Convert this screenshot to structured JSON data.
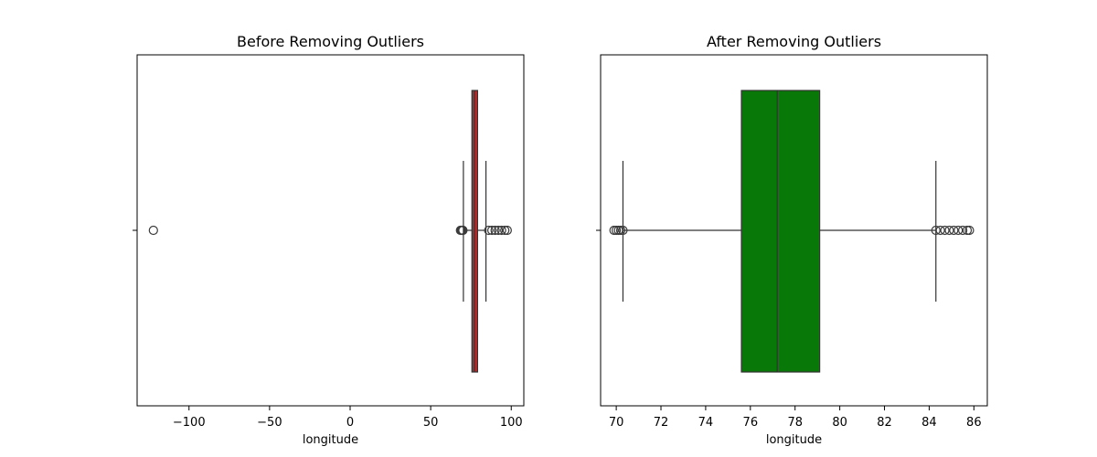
{
  "chart_data": [
    {
      "type": "box",
      "title": "Before Removing Outliers",
      "xlabel": "longitude",
      "ylabel": "",
      "xlim": [
        -132.2,
        107.8
      ],
      "xticks": [
        -100,
        -50,
        0,
        50,
        100
      ],
      "xtick_labels": [
        "−100",
        "−50",
        "0",
        "50",
        "100"
      ],
      "box": {
        "whisker_low": 70.3,
        "q1": 75.6,
        "median": 77.2,
        "q3": 79.1,
        "whisker_high": 84.3
      },
      "outliers_low": [
        -122.1,
        68.5,
        69.0,
        69.5,
        70.0
      ],
      "outliers_high": [
        86.0,
        88.0,
        90.0,
        92.0,
        94.0,
        96.0,
        97.5
      ],
      "color": "#b82b2b",
      "grid": false
    },
    {
      "type": "box",
      "title": "After Removing Outliers",
      "xlabel": "longitude",
      "ylabel": "",
      "xlim": [
        69.3,
        86.6
      ],
      "xticks": [
        70,
        72,
        74,
        76,
        78,
        80,
        82,
        84,
        86
      ],
      "xtick_labels": [
        "70",
        "72",
        "74",
        "76",
        "78",
        "80",
        "82",
        "84",
        "86"
      ],
      "box": {
        "whisker_low": 70.3,
        "q1": 75.6,
        "median": 77.2,
        "q3": 79.1,
        "whisker_high": 84.3
      },
      "outliers_low": [
        69.9,
        70.0,
        70.1,
        70.2,
        70.3
      ],
      "outliers_high": [
        84.3,
        84.5,
        84.7,
        84.9,
        85.1,
        85.3,
        85.5,
        85.7,
        85.8
      ],
      "color": "#087808",
      "grid": false
    }
  ]
}
